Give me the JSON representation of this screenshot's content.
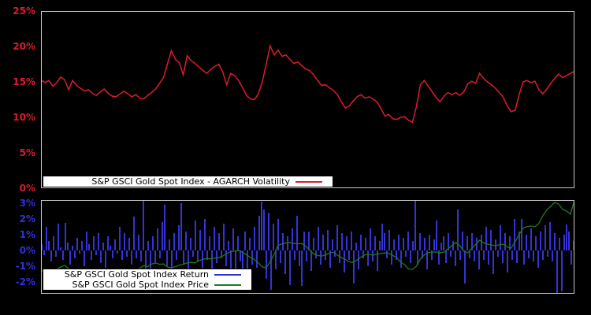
{
  "colors": {
    "background": "#000000",
    "panel_border": "#c8c8c8",
    "volatility_line": "#dd1c2c",
    "return_bars": "#3333d6",
    "price_line": "#1e7b1e",
    "top_axis_labels": "#dd1c2c",
    "bottom_axis_labels": "#3030e0",
    "legend_background": "#ffffff",
    "legend_border": "#000000",
    "legend_text": "#000000"
  },
  "top_panel": {
    "y_ticks": [
      "25%",
      "20%",
      "15%",
      "10%",
      "5%",
      "0%"
    ],
    "legend": {
      "label": "S&P GSCI Gold Spot Index - AGARCH Volatility"
    }
  },
  "bottom_panel": {
    "y_ticks": [
      "3%",
      "2%",
      "1%",
      "0%",
      "-1%",
      "-2%"
    ],
    "legend": [
      {
        "label": "S&P GSCI Gold Spot Index Return"
      },
      {
        "label": "S&P GSCI Gold Spot Index Price"
      }
    ]
  },
  "chart_data": [
    {
      "type": "line",
      "panel": "top",
      "xlabel": "",
      "ylabel": "",
      "y_unit": "%",
      "ylim": [
        0,
        25
      ],
      "y_tick_values": [
        0,
        5,
        10,
        15,
        20,
        25
      ],
      "x_axis": "time index (no visible x tick labels)",
      "grid": false,
      "legend_position": "bottom-left inside plot",
      "series": [
        {
          "name": "S&P GSCI Gold Spot Index - AGARCH Volatility",
          "color": "#dd1c2c",
          "values": [
            15.3,
            14.9,
            15.2,
            14.4,
            14.9,
            15.7,
            15.3,
            13.9,
            15.2,
            14.5,
            14.1,
            13.7,
            13.9,
            13.4,
            13.1,
            13.6,
            14.0,
            13.4,
            13.0,
            12.9,
            13.3,
            13.7,
            13.3,
            12.9,
            13.2,
            12.7,
            12.6,
            13.1,
            13.5,
            14.0,
            14.8,
            15.6,
            17.5,
            19.4,
            18.2,
            17.7,
            16.0,
            18.7,
            18.0,
            17.6,
            17.1,
            16.6,
            16.2,
            16.8,
            17.2,
            17.5,
            16.4,
            14.6,
            16.2,
            15.9,
            15.2,
            14.2,
            13.1,
            12.6,
            12.5,
            13.3,
            15.0,
            17.5,
            20.1,
            18.8,
            19.5,
            18.6,
            18.8,
            18.2,
            17.6,
            17.8,
            17.3,
            16.8,
            16.6,
            16.0,
            15.2,
            14.5,
            14.6,
            14.2,
            13.8,
            13.2,
            12.2,
            11.3,
            11.6,
            12.3,
            12.9,
            13.2,
            12.7,
            12.9,
            12.6,
            12.2,
            11.3,
            10.2,
            10.4,
            9.8,
            9.7,
            10.0,
            10.1,
            9.6,
            9.3,
            11.5,
            14.6,
            15.2,
            14.4,
            13.6,
            12.8,
            12.2,
            13.0,
            13.5,
            13.2,
            13.5,
            13.1,
            13.6,
            14.7,
            15.1,
            14.8,
            16.2,
            15.5,
            15.0,
            14.6,
            14.1,
            13.5,
            12.8,
            11.6,
            10.8,
            11.0,
            13.2,
            15.0,
            15.2,
            14.9,
            15.1,
            13.9,
            13.3,
            14.0,
            14.8,
            15.5,
            16.1,
            15.6,
            15.9,
            16.2,
            16.5
          ]
        }
      ]
    },
    {
      "type": "bar+line",
      "panel": "bottom",
      "xlabel": "",
      "ylabel": "",
      "y_unit": "%",
      "ylim": [
        -2.75,
        3.2
      ],
      "y_tick_values": [
        -2,
        -1,
        0,
        1,
        2,
        3
      ],
      "x_axis": "time index (no visible x tick labels)",
      "grid": false,
      "legend_position": "bottom-left inside plot",
      "series": [
        {
          "name": "S&P GSCI Gold Spot Index Return",
          "type": "bar",
          "color": "#3333d6",
          "values": [
            0.4,
            -0.3,
            1.5,
            0.6,
            -0.7,
            0.9,
            -0.4,
            1.7,
            0.2,
            -0.6,
            1.75,
            0.5,
            -0.9,
            0.3,
            -0.5,
            0.8,
            -0.2,
            0.6,
            -1.0,
            1.2,
            0.4,
            -0.6,
            0.9,
            -0.3,
            1.1,
            -0.8,
            0.5,
            -1.1,
            0.9,
            0.3,
            -0.5,
            0.7,
            -0.2,
            1.5,
            -0.6,
            1.1,
            -0.4,
            0.8,
            -0.9,
            2.15,
            -0.5,
            1.0,
            -0.7,
            3.2,
            -1.2,
            0.6,
            -1.6,
            0.9,
            -0.8,
            1.4,
            -0.5,
            1.8,
            2.9,
            -1.0,
            0.7,
            -1.3,
            1.1,
            -0.6,
            1.6,
            3.0,
            -0.9,
            1.2,
            -1.5,
            0.8,
            -0.4,
            1.9,
            -0.7,
            1.3,
            -1.1,
            2.0,
            -0.6,
            0.9,
            -1.4,
            1.5,
            -0.8,
            1.1,
            -0.5,
            1.7,
            -1.0,
            0.6,
            -1.2,
            1.4,
            -2.1,
            0.9,
            -0.7,
            -2.5,
            1.2,
            -1.6,
            0.8,
            -0.9,
            1.5,
            -1.1,
            2.2,
            3.1,
            2.6,
            -1.8,
            2.4,
            -2.5,
            1.7,
            -1.2,
            2.0,
            -0.8,
            1.1,
            -1.5,
            0.9,
            -2.2,
            1.4,
            -0.6,
            2.2,
            -1.0,
            -2.25,
            1.2,
            -0.7,
            1.2,
            -1.3,
            0.8,
            -0.5,
            1.5,
            -0.9,
            1.0,
            -0.6,
            1.3,
            -1.1,
            0.7,
            -0.4,
            1.6,
            -0.8,
            1.1,
            -1.4,
            0.9,
            -0.6,
            1.2,
            -2.1,
            0.5,
            -1.2,
            1.0,
            -0.5,
            0.8,
            -1.0,
            1.4,
            -0.7,
            0.9,
            -1.3,
            0.6,
            1.7,
            1.1,
            -0.5,
            1.3,
            -0.9,
            0.7,
            -0.6,
            1.0,
            -1.1,
            0.8,
            -0.4,
            1.2,
            -0.8,
            0.6,
            3.2,
            -0.9,
            1.1,
            -0.5,
            0.8,
            -1.2,
            1.0,
            -0.6,
            0.7,
            1.9,
            -0.9,
            0.5,
            0.9,
            -0.8,
            1.1,
            -0.4,
            0.6,
            -1.0,
            2.6,
            -0.6,
            1.2,
            -2.1,
            0.9,
            -0.5,
            1.1,
            -0.7,
            0.8,
            -1.2,
            1.0,
            -0.6,
            1.5,
            -0.9,
            1.3,
            -1.5,
            0.7,
            -0.4,
            1.6,
            -0.8,
            1.1,
            -1.4,
            0.9,
            -0.6,
            2.0,
            -0.8,
            1.2,
            2.0,
            -0.9,
            1.0,
            -0.5,
            1.4,
            -0.7,
            0.9,
            -1.1,
            1.2,
            -0.6,
            1.6,
            -0.4,
            1.8,
            -0.7,
            1.1,
            -2.7,
            0.8,
            -2.6,
            1.0,
            1.65,
            1.2,
            -0.9,
            0.6
          ]
        },
        {
          "name": "S&P GSCI Gold Spot Index Price",
          "type": "line",
          "color": "#1e7b1e",
          "values": [
            -1.3,
            -1.28,
            -1.3,
            -1.25,
            -1.18,
            -1.05,
            -0.95,
            -1.15,
            -1.28,
            -1.32,
            -1.34,
            -1.3,
            -1.27,
            -1.32,
            -1.42,
            -1.44,
            -1.4,
            -1.34,
            -1.3,
            -1.34,
            -1.32,
            -1.42,
            -1.44,
            -1.35,
            -1.24,
            -1.13,
            -0.97,
            -1.03,
            -0.87,
            -0.8,
            -0.88,
            -0.86,
            -1.05,
            -1.1,
            -1.03,
            -0.94,
            -0.88,
            -0.79,
            -0.76,
            -0.79,
            -0.64,
            -0.56,
            -0.51,
            -0.54,
            -0.49,
            -0.46,
            -0.36,
            -0.2,
            -0.09,
            -0.03,
            -0.02,
            -0.12,
            -0.28,
            -0.45,
            -0.58,
            -0.78,
            -1.05,
            -1.1,
            -0.72,
            -0.25,
            0.32,
            0.42,
            0.47,
            0.5,
            0.44,
            0.42,
            0.44,
            0.26,
            0.02,
            -0.22,
            -0.32,
            -0.36,
            -0.28,
            -0.16,
            -0.12,
            -0.3,
            -0.45,
            -0.58,
            -0.72,
            -0.77,
            -0.6,
            -0.42,
            -0.28,
            -0.25,
            -0.3,
            -0.24,
            -0.19,
            -0.16,
            -0.18,
            -0.32,
            -0.45,
            -0.75,
            -0.9,
            -1.18,
            -1.2,
            -1.0,
            -0.55,
            -0.28,
            -0.14,
            -0.1,
            -0.1,
            -0.14,
            -0.1,
            0.1,
            0.3,
            0.5,
            0.3,
            -0.05,
            -0.15,
            0.12,
            0.38,
            0.65,
            0.48,
            0.4,
            0.35,
            0.3,
            0.36,
            0.4,
            0.22,
            0.15,
            0.55,
            1.0,
            1.42,
            1.52,
            1.55,
            1.5,
            1.72,
            2.2,
            2.58,
            2.8,
            3.05,
            2.95,
            2.6,
            2.5,
            2.3,
            3.2
          ]
        }
      ]
    }
  ]
}
